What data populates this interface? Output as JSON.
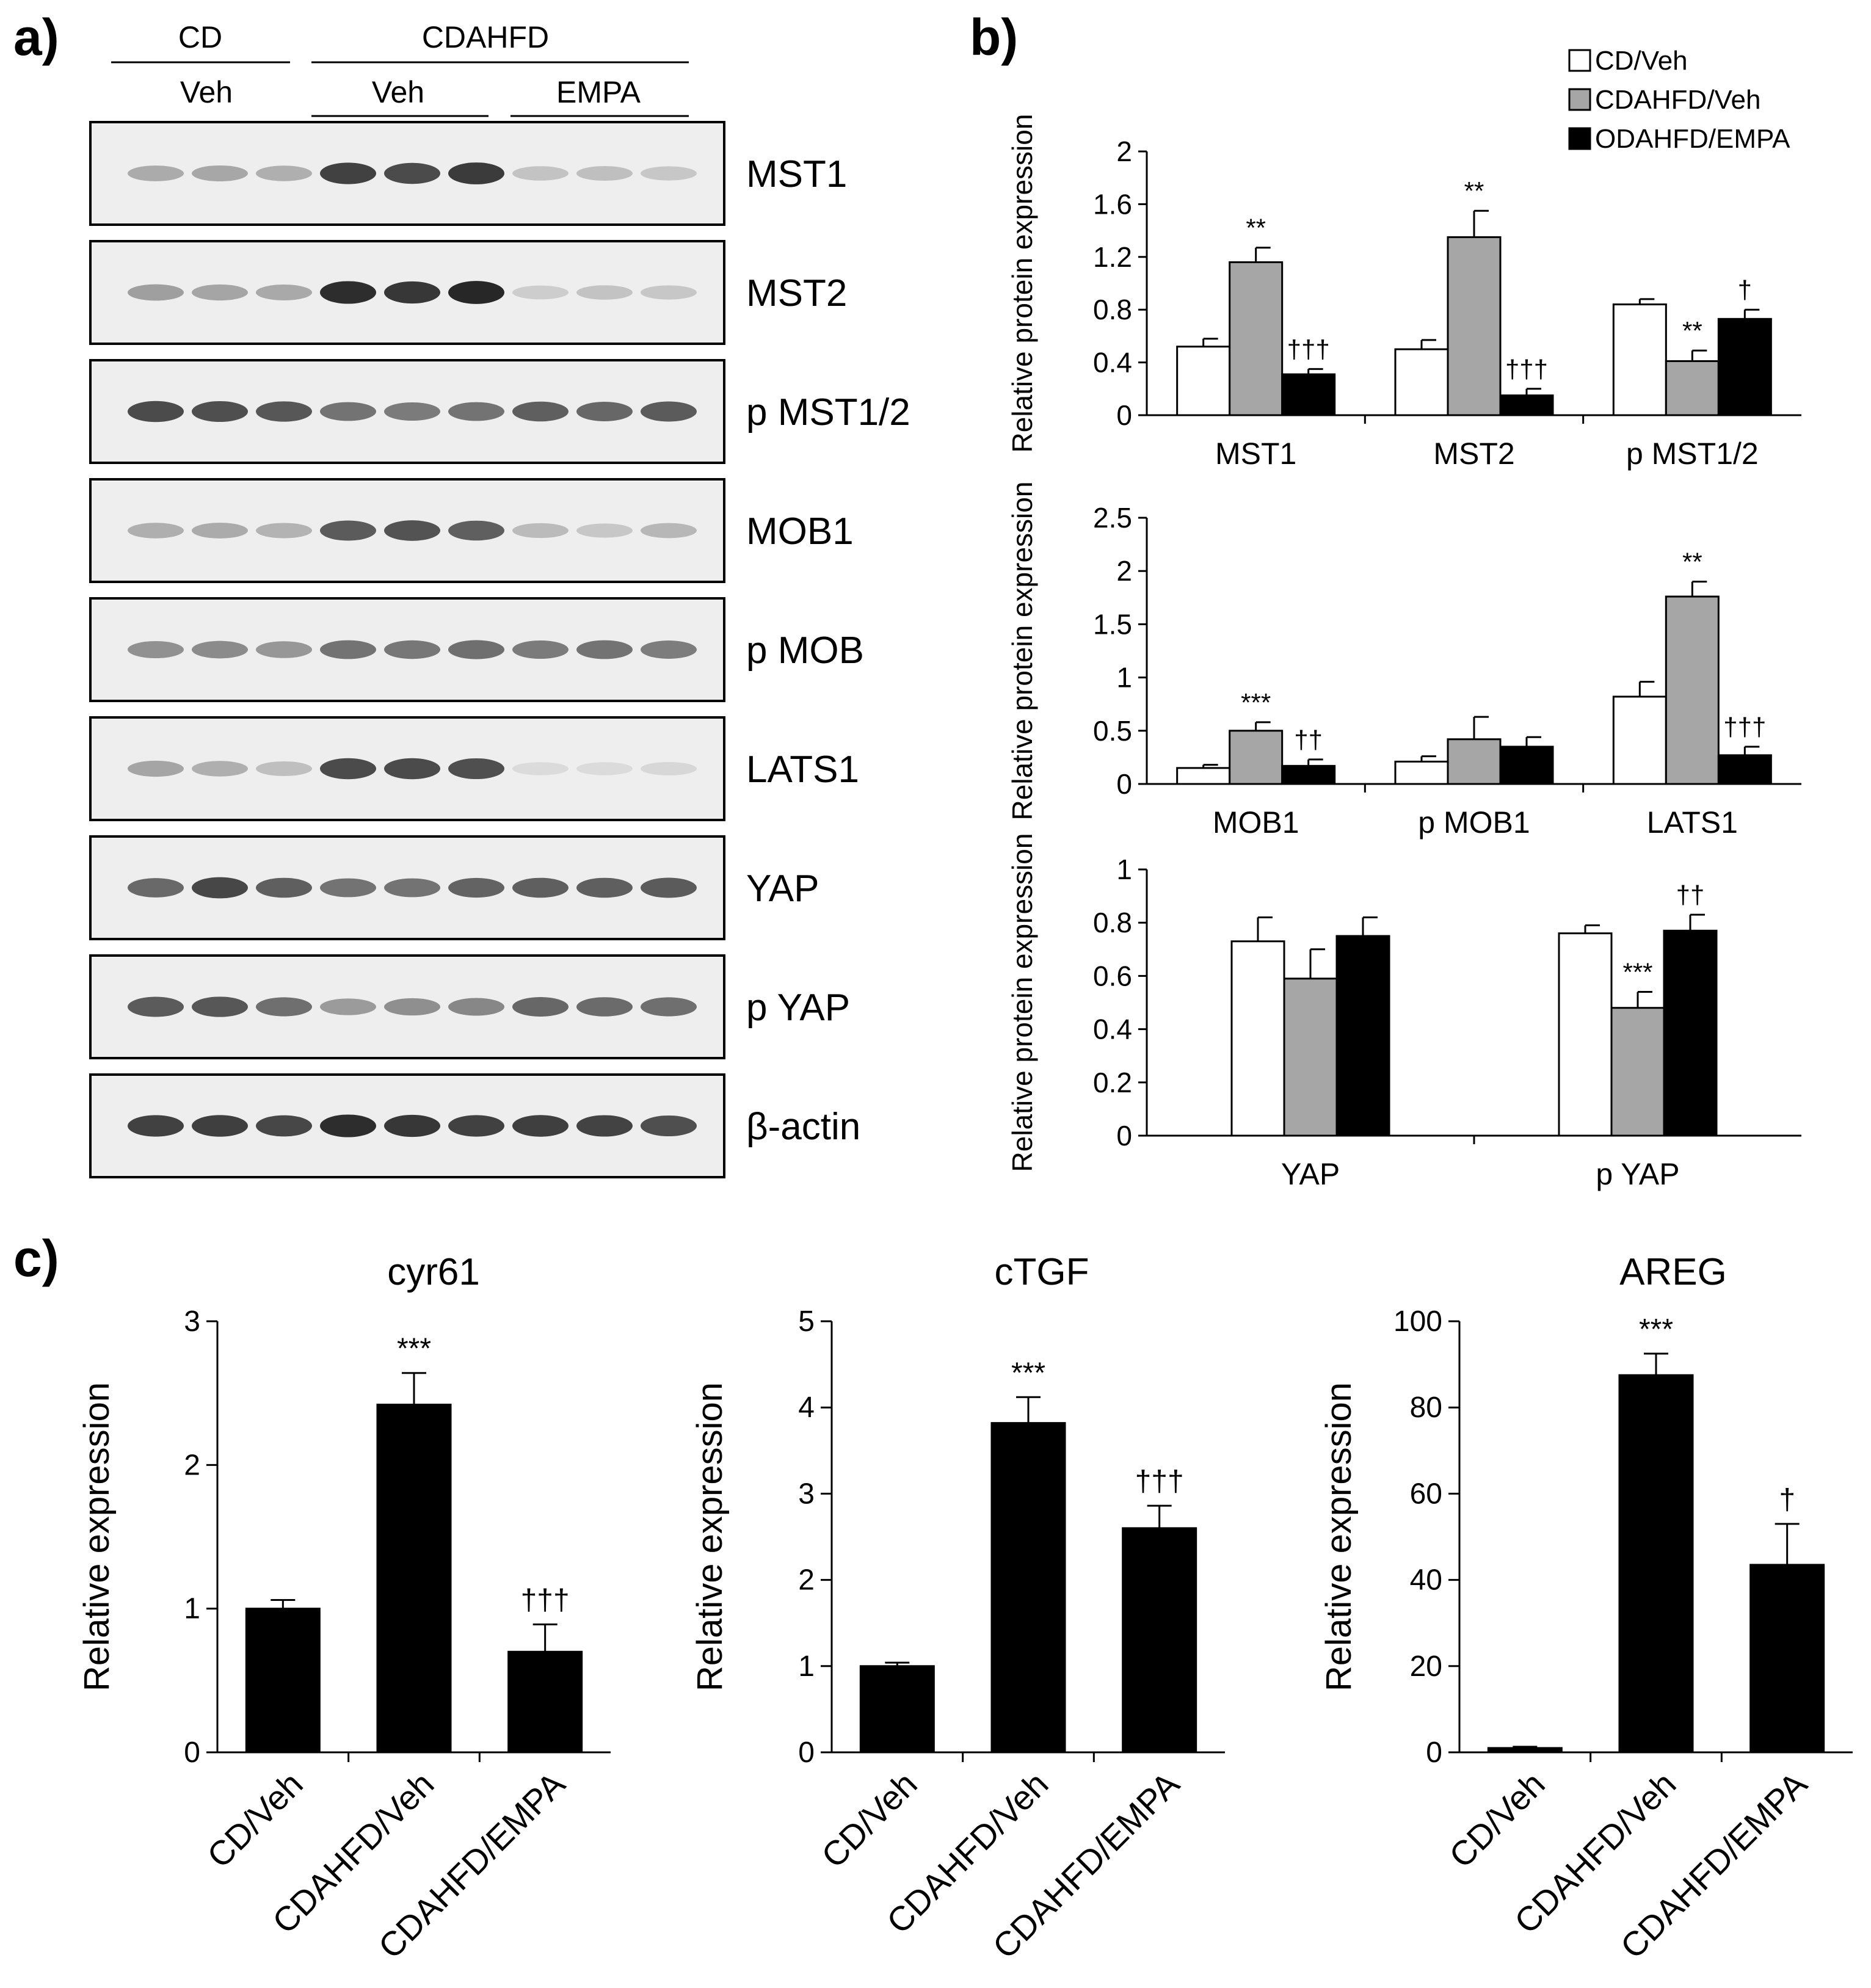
{
  "panel_labels": {
    "a": "a)",
    "b": "b)",
    "c": "c)"
  },
  "blot": {
    "group_top": [
      "CD",
      "CDAHFD"
    ],
    "group_sub": [
      "Veh",
      "Veh",
      "EMPA"
    ],
    "labels": [
      "MST1",
      "MST2",
      "p MST1/2",
      "MOB1",
      "p MOB",
      "LATS1",
      "YAP",
      "p YAP",
      "β-actin"
    ],
    "band_intensity": [
      [
        0.32,
        0.34,
        0.3,
        0.85,
        0.8,
        0.88,
        0.2,
        0.22,
        0.18
      ],
      [
        0.38,
        0.35,
        0.33,
        0.95,
        0.9,
        0.98,
        0.15,
        0.2,
        0.18
      ],
      [
        0.8,
        0.78,
        0.74,
        0.6,
        0.56,
        0.6,
        0.7,
        0.66,
        0.72
      ],
      [
        0.3,
        0.32,
        0.28,
        0.72,
        0.76,
        0.7,
        0.24,
        0.18,
        0.26
      ],
      [
        0.45,
        0.48,
        0.42,
        0.6,
        0.58,
        0.62,
        0.56,
        0.6,
        0.55
      ],
      [
        0.35,
        0.3,
        0.22,
        0.8,
        0.8,
        0.78,
        0.08,
        0.08,
        0.1
      ],
      [
        0.65,
        0.82,
        0.7,
        0.6,
        0.6,
        0.68,
        0.7,
        0.7,
        0.72
      ],
      [
        0.72,
        0.74,
        0.62,
        0.4,
        0.46,
        0.5,
        0.66,
        0.64,
        0.62
      ],
      [
        0.85,
        0.86,
        0.82,
        0.95,
        0.9,
        0.85,
        0.86,
        0.84,
        0.78
      ]
    ]
  },
  "legend": [
    "CD/Veh",
    "CDAHFD/Veh",
    "ODAHFD/EMPA"
  ],
  "colors": {
    "cd_veh": "#ffffff",
    "cdahfd_veh": "#a6a6a6",
    "cdahfd_empa": "#000000",
    "axis": "#000000"
  },
  "chart_data": [
    {
      "type": "bar",
      "panel": "b-1",
      "categories": [
        "MST1",
        "MST2",
        "p MST1/2"
      ],
      "series": [
        {
          "name": "CD/Veh",
          "values": [
            0.52,
            0.5,
            0.84
          ],
          "errors": [
            0.06,
            0.07,
            0.04
          ]
        },
        {
          "name": "CDAHFD/Veh",
          "values": [
            1.16,
            1.35,
            0.41
          ],
          "errors": [
            0.11,
            0.2,
            0.08
          ]
        },
        {
          "name": "ODAHFD/EMPA",
          "values": [
            0.31,
            0.15,
            0.73
          ],
          "errors": [
            0.04,
            0.05,
            0.07
          ]
        }
      ],
      "significance": [
        [
          "",
          "**",
          "†††"
        ],
        [
          "",
          "**",
          "†††"
        ],
        [
          "",
          "**",
          "†"
        ]
      ],
      "ylabel": "Relative protein expression",
      "ylim": [
        0,
        2
      ],
      "yticks": [
        "0",
        "0.4",
        "0.8",
        "1.2",
        "1.6",
        "2"
      ]
    },
    {
      "type": "bar",
      "panel": "b-2",
      "categories": [
        "MOB1",
        "p MOB1",
        "LATS1"
      ],
      "series": [
        {
          "name": "CD/Veh",
          "values": [
            0.15,
            0.21,
            0.82
          ],
          "errors": [
            0.03,
            0.05,
            0.14
          ]
        },
        {
          "name": "CDAHFD/Veh",
          "values": [
            0.5,
            0.42,
            1.76
          ],
          "errors": [
            0.08,
            0.21,
            0.14
          ]
        },
        {
          "name": "ODAHFD/EMPA",
          "values": [
            0.17,
            0.35,
            0.27
          ],
          "errors": [
            0.06,
            0.09,
            0.08
          ]
        }
      ],
      "significance": [
        [
          "",
          "***",
          "††"
        ],
        [
          "",
          "",
          ""
        ],
        [
          "",
          "**",
          "†††"
        ]
      ],
      "ylabel": "Relative protein expression",
      "ylim": [
        0,
        2.5
      ],
      "yticks": [
        "0",
        "0.5",
        "1",
        "1.5",
        "2",
        "2.5"
      ]
    },
    {
      "type": "bar",
      "panel": "b-3",
      "categories": [
        "YAP",
        "p YAP"
      ],
      "series": [
        {
          "name": "CD/Veh",
          "values": [
            0.73,
            0.76
          ],
          "errors": [
            0.09,
            0.03
          ]
        },
        {
          "name": "CDAHFD/Veh",
          "values": [
            0.59,
            0.48
          ],
          "errors": [
            0.11,
            0.06
          ]
        },
        {
          "name": "ODAHFD/EMPA",
          "values": [
            0.75,
            0.77
          ],
          "errors": [
            0.07,
            0.06
          ]
        }
      ],
      "significance": [
        [
          "",
          "",
          ""
        ],
        [
          "",
          "***",
          "††"
        ]
      ],
      "ylabel": "Relative protein expression",
      "ylim": [
        0,
        1
      ],
      "yticks": [
        "0",
        "0.2",
        "0.4",
        "0.6",
        "0.8",
        "1"
      ]
    },
    {
      "type": "bar",
      "panel": "c-1",
      "title": "cyr61",
      "categories": [
        "CD/Veh",
        "CDAHFD/Veh",
        "CDAHFD/EMPA"
      ],
      "values": [
        1.0,
        2.42,
        0.7
      ],
      "errors": [
        0.06,
        0.22,
        0.19
      ],
      "significance": [
        "",
        "***",
        "†††"
      ],
      "ylabel": "Relative expression",
      "ylim": [
        0,
        3
      ],
      "yticks": [
        "0",
        "1",
        "2",
        "3"
      ]
    },
    {
      "type": "bar",
      "panel": "c-2",
      "title": "cTGF",
      "categories": [
        "CD/Veh",
        "CDAHFD/Veh",
        "CDAHFD/EMPA"
      ],
      "values": [
        1.0,
        3.82,
        2.6
      ],
      "errors": [
        0.04,
        0.3,
        0.26
      ],
      "significance": [
        "",
        "***",
        "†††"
      ],
      "ylabel": "Relative expression",
      "ylim": [
        0,
        5
      ],
      "yticks": [
        "0",
        "1",
        "2",
        "3",
        "4",
        "5"
      ]
    },
    {
      "type": "bar",
      "panel": "c-3",
      "title": "AREG",
      "categories": [
        "CD/Veh",
        "CDAHFD/Veh",
        "CDAHFD/EMPA"
      ],
      "values": [
        1.0,
        87.5,
        43.5
      ],
      "errors": [
        0.3,
        5.0,
        9.5
      ],
      "significance": [
        "",
        "***",
        "†"
      ],
      "ylabel": "Relative expression",
      "ylim": [
        0,
        100
      ],
      "yticks": [
        "0",
        "20",
        "40",
        "60",
        "80",
        "100"
      ]
    }
  ]
}
